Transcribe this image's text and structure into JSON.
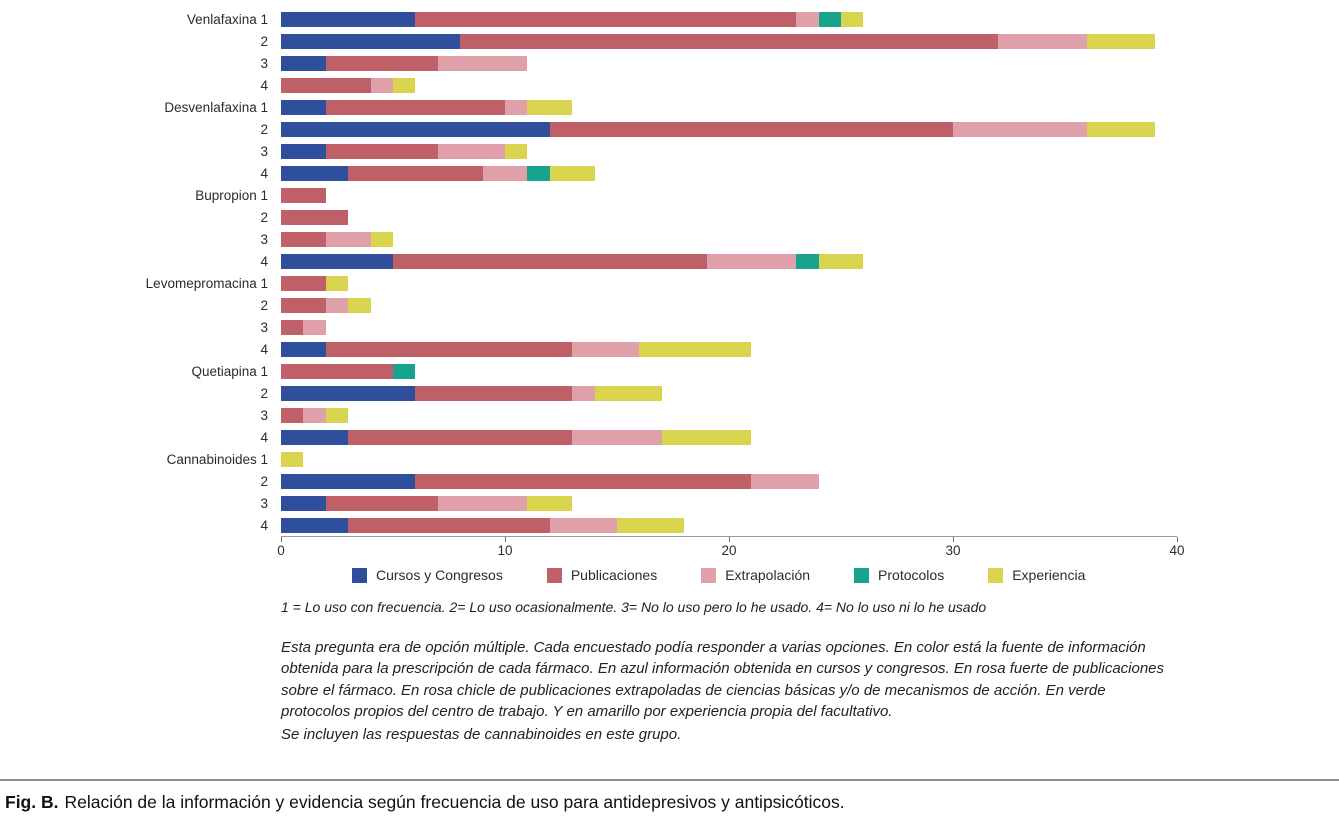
{
  "figure": {
    "caption": {
      "label": "Fig. B.",
      "text": "Relación de la información y evidencia según frecuencia de uso para antidepresivos y antipsicóticos."
    },
    "footnote_scale": "1 = Lo uso con frecuencia. 2= Lo uso ocasionalmente. 3= No lo uso pero lo he usado. 4= No lo uso ni lo he usado",
    "note_main": "Esta pregunta era de opción múltiple. Cada encuestado podía responder a varias opciones. En color está la fuente de información obtenida para la prescripción de cada fármaco. En azul información obtenida en cursos y congresos. En rosa fuerte de publicaciones sobre el fármaco. En rosa chicle de publicaciones extrapoladas de ciencias básicas y/o de mecanismos de acción. En verde protocolos propios del centro de trabajo. Y en amarillo por experiencia propia del facultativo.",
    "note_secondary": "Se incluyen las respuestas de cannabinoides en este grupo."
  },
  "chart_data": {
    "type": "bar",
    "orientation": "horizontal",
    "stacked": true,
    "title": "",
    "xlabel": "",
    "ylabel": "",
    "xlim": [
      0,
      40
    ],
    "xticks": [
      0,
      10,
      20,
      30,
      40
    ],
    "grid": false,
    "legend_position": "bottom",
    "series": [
      {
        "name": "Cursos y Congresos",
        "color": "#2f4f9d"
      },
      {
        "name": "Publicaciones",
        "color": "#bf6069"
      },
      {
        "name": "Extrapolación",
        "color": "#dfa0a9"
      },
      {
        "name": "Protocolos",
        "color": "#17a38c"
      },
      {
        "name": "Experiencia",
        "color": "#d9d44d"
      }
    ],
    "groups": [
      {
        "name": "Venlafaxina",
        "rows": [
          {
            "label": "1",
            "values": [
              6,
              17,
              1,
              1,
              1
            ]
          },
          {
            "label": "2",
            "values": [
              8,
              24,
              4,
              0,
              3
            ]
          },
          {
            "label": "3",
            "values": [
              2,
              5,
              4,
              0,
              0
            ]
          },
          {
            "label": "4",
            "values": [
              0,
              4,
              1,
              0,
              1
            ]
          }
        ]
      },
      {
        "name": "Desvenlafaxina",
        "rows": [
          {
            "label": "1",
            "values": [
              2,
              8,
              1,
              0,
              2
            ]
          },
          {
            "label": "2",
            "values": [
              12,
              18,
              6,
              0,
              3
            ]
          },
          {
            "label": "3",
            "values": [
              2,
              5,
              3,
              0,
              1
            ]
          },
          {
            "label": "4",
            "values": [
              3,
              6,
              2,
              1,
              2
            ]
          }
        ]
      },
      {
        "name": "Bupropion",
        "rows": [
          {
            "label": "1",
            "values": [
              0,
              2,
              0,
              0,
              0
            ]
          },
          {
            "label": "2",
            "values": [
              0,
              3,
              0,
              0,
              0
            ]
          },
          {
            "label": "3",
            "values": [
              0,
              2,
              2,
              0,
              1
            ]
          },
          {
            "label": "4",
            "values": [
              5,
              14,
              4,
              1,
              2
            ]
          }
        ]
      },
      {
        "name": "Levomepromacina",
        "rows": [
          {
            "label": "1",
            "values": [
              0,
              2,
              0,
              0,
              1
            ]
          },
          {
            "label": "2",
            "values": [
              0,
              2,
              1,
              0,
              1
            ]
          },
          {
            "label": "3",
            "values": [
              0,
              1,
              1,
              0,
              0
            ]
          },
          {
            "label": "4",
            "values": [
              2,
              11,
              3,
              0,
              5
            ]
          }
        ]
      },
      {
        "name": "Quetiapina",
        "rows": [
          {
            "label": "1",
            "values": [
              0,
              5,
              0,
              1,
              0
            ]
          },
          {
            "label": "2",
            "values": [
              6,
              7,
              1,
              0,
              3
            ]
          },
          {
            "label": "3",
            "values": [
              0,
              1,
              1,
              0,
              1
            ]
          },
          {
            "label": "4",
            "values": [
              3,
              10,
              4,
              0,
              4
            ]
          }
        ]
      },
      {
        "name": "Cannabinoides",
        "rows": [
          {
            "label": "1",
            "values": [
              0,
              0,
              0,
              0,
              1
            ]
          },
          {
            "label": "2",
            "values": [
              6,
              15,
              3,
              0,
              0
            ]
          },
          {
            "label": "3",
            "values": [
              2,
              5,
              4,
              0,
              2
            ]
          },
          {
            "label": "4",
            "values": [
              3,
              9,
              3,
              0,
              3
            ]
          }
        ]
      }
    ]
  }
}
